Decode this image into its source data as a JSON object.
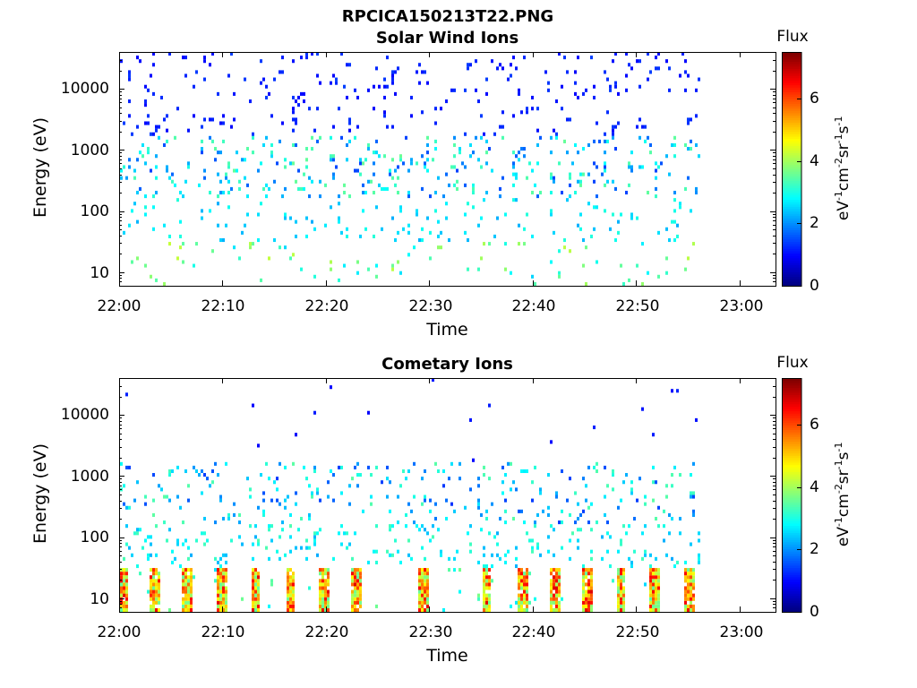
{
  "figure_title": "RPCICA150213T22.PNG",
  "chart_data": [
    {
      "type": "heatmap",
      "title": "Solar Wind Ions",
      "xlabel": "Time",
      "ylabel": "Energy (eV)",
      "x_ticks": [
        "22:00",
        "22:10",
        "22:20",
        "22:30",
        "22:40",
        "22:50",
        "23:00"
      ],
      "x_range_minutes": [
        0,
        63.5
      ],
      "data_end_minutes": 56,
      "y_scale": "log",
      "y_range": [
        6,
        40000
      ],
      "y_ticks": [
        "10",
        "100",
        "1000",
        "10000"
      ],
      "colorbar": {
        "title": "Flux",
        "label": "eV-1cm-2sr-1s-1",
        "range": [
          0,
          7.5
        ],
        "ticks": [
          "0",
          "2",
          "4",
          "6"
        ],
        "colormap": "jet"
      },
      "typical_flux": {
        "above_1000_eV": 1.0,
        "100_to_1000_eV": 2.2,
        "below_30_eV_stripes": 3.2
      }
    },
    {
      "type": "heatmap",
      "title": "Cometary Ions",
      "xlabel": "Time",
      "ylabel": "Energy (eV)",
      "x_ticks": [
        "22:00",
        "22:10",
        "22:20",
        "22:30",
        "22:40",
        "22:50",
        "23:00"
      ],
      "x_range_minutes": [
        0,
        63.5
      ],
      "data_end_minutes": 56,
      "y_scale": "log",
      "y_range": [
        6,
        40000
      ],
      "y_ticks": [
        "10",
        "100",
        "1000",
        "10000"
      ],
      "colorbar": {
        "title": "Flux",
        "label": "eV-1cm-2sr-1s-1",
        "range": [
          0,
          7.5
        ],
        "ticks": [
          "0",
          "2",
          "4",
          "6"
        ],
        "colormap": "jet"
      },
      "stripe_times_minutes": [
        0.2,
        3.3,
        6.5,
        9.8,
        13.1,
        16.4,
        19.7,
        22.8,
        29.3,
        35.5,
        38.9,
        42.0,
        45.2,
        48.4,
        51.7,
        55.0
      ],
      "typical_flux": {
        "above_1000_eV": 1.0,
        "100_to_1000_eV": 2.3,
        "below_20_eV_stripes": 5.0
      }
    }
  ],
  "colors": {
    "axis": "#000000",
    "background": "#ffffff"
  }
}
